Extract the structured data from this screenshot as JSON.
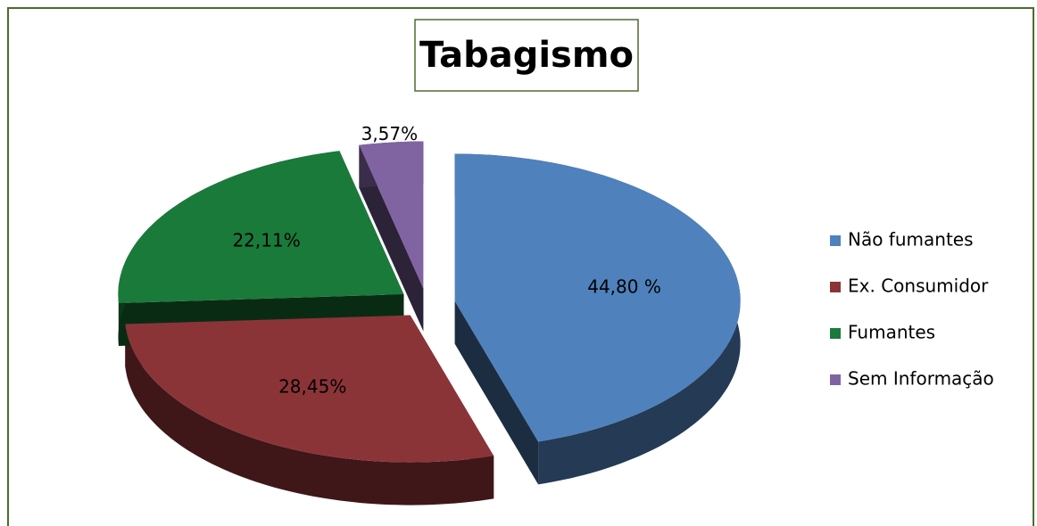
{
  "chart_data": {
    "type": "pie3d",
    "title": "Tabagismo",
    "categories": [
      "Não fumantes",
      "Ex. Consumidor",
      "Fumantes",
      "Sem Informação"
    ],
    "values": [
      44.8,
      28.45,
      22.11,
      3.57
    ],
    "value_labels": [
      "44,80 %",
      "28,45%",
      "22,11%",
      "3,57%"
    ],
    "colors": [
      "#4f81bd",
      "#8b3438",
      "#1a7a3a",
      "#8064a2"
    ],
    "legend": "right"
  }
}
